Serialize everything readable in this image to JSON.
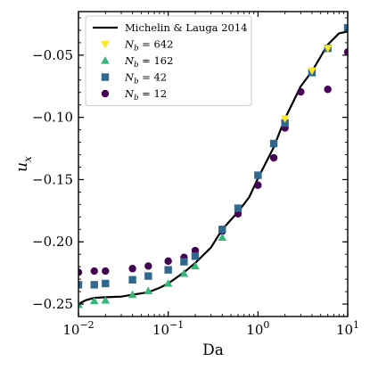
{
  "chart_data": {
    "type": "scatter",
    "xlabel": "Da",
    "ylabel": "u_x",
    "xscale": "log",
    "xlim": [
      0.01,
      10
    ],
    "ylim": [
      -0.26,
      -0.015
    ],
    "x_tick_labels": [
      {
        "value": 0.01,
        "base": "10",
        "exp": "−2"
      },
      {
        "value": 0.1,
        "base": "10",
        "exp": "−1"
      },
      {
        "value": 1,
        "base": "10",
        "exp": "0"
      },
      {
        "value": 10,
        "base": "10",
        "exp": "1"
      }
    ],
    "y_ticks": [
      -0.25,
      -0.2,
      -0.15,
      -0.1,
      -0.05
    ],
    "y_tick_labels": [
      "−0.25",
      "−0.20",
      "−0.15",
      "−0.10",
      "−0.05"
    ],
    "legend_position": "top-left",
    "colors": {
      "line": "#000000",
      "Nb642": "#fde725",
      "Nb162": "#35b779",
      "Nb42": "#31688e",
      "Nb12": "#440154"
    },
    "series": [
      {
        "name": "Michelin & Lauga 2014",
        "kind": "line",
        "color_key": "line",
        "x": [
          0.01,
          0.012,
          0.015,
          0.02,
          0.03,
          0.04,
          0.06,
          0.08,
          0.1,
          0.15,
          0.2,
          0.3,
          0.4,
          0.6,
          0.8,
          1.0,
          1.5,
          2.0,
          3.0,
          4.0,
          6.0,
          8.0,
          10.0
        ],
        "y": [
          -0.25,
          -0.247,
          -0.245,
          -0.2445,
          -0.244,
          -0.2425,
          -0.2405,
          -0.237,
          -0.2335,
          -0.2245,
          -0.217,
          -0.2045,
          -0.19,
          -0.176,
          -0.164,
          -0.149,
          -0.124,
          -0.101,
          -0.075,
          -0.063,
          -0.0415,
          -0.0325,
          -0.031
        ]
      },
      {
        "name": "N_b = 642",
        "label_sym": "N",
        "label_sub": "b",
        "label_val": " = 642",
        "kind": "marker",
        "marker": "triangle-down",
        "color_key": "Nb642",
        "x": [
          2.0,
          4.0,
          6.0
        ],
        "y": [
          -0.101,
          -0.0625,
          -0.0445
        ]
      },
      {
        "name": "N_b = 162",
        "label_sym": "N",
        "label_sub": "b",
        "label_val": " = 162",
        "kind": "marker",
        "marker": "triangle-up",
        "color_key": "Nb162",
        "x": [
          0.01,
          0.015,
          0.02,
          0.04,
          0.06,
          0.1,
          0.15,
          0.2,
          0.4
        ],
        "y": [
          -0.2505,
          -0.2475,
          -0.247,
          -0.2425,
          -0.2395,
          -0.2335,
          -0.2255,
          -0.2195,
          -0.1965
        ]
      },
      {
        "name": "N_b = 42",
        "label_sym": "N",
        "label_sub": "b",
        "label_val": " = 42",
        "kind": "marker",
        "marker": "square",
        "color_key": "Nb42",
        "x": [
          0.01,
          0.015,
          0.02,
          0.04,
          0.06,
          0.1,
          0.15,
          0.2,
          0.4,
          0.6,
          1.0,
          1.5,
          2.0,
          4.0,
          6.0,
          10.0
        ],
        "y": [
          -0.2345,
          -0.2345,
          -0.2335,
          -0.2305,
          -0.2275,
          -0.2225,
          -0.216,
          -0.2115,
          -0.19,
          -0.173,
          -0.1465,
          -0.121,
          -0.1045,
          -0.064,
          -0.0445,
          -0.028
        ]
      },
      {
        "name": "N_b = 12",
        "label_sym": "N",
        "label_sub": "b",
        "label_val": " = 12",
        "kind": "marker",
        "marker": "circle",
        "color_key": "Nb12",
        "x": [
          0.01,
          0.015,
          0.02,
          0.04,
          0.06,
          0.1,
          0.15,
          0.2,
          0.4,
          0.6,
          1.0,
          1.5,
          2.0,
          3.0,
          6.0,
          10.0
        ],
        "y": [
          -0.2245,
          -0.2235,
          -0.2235,
          -0.2215,
          -0.2195,
          -0.2155,
          -0.2125,
          -0.207,
          -0.1915,
          -0.1775,
          -0.1545,
          -0.1325,
          -0.1085,
          -0.0795,
          -0.0775,
          -0.0475
        ]
      }
    ]
  }
}
